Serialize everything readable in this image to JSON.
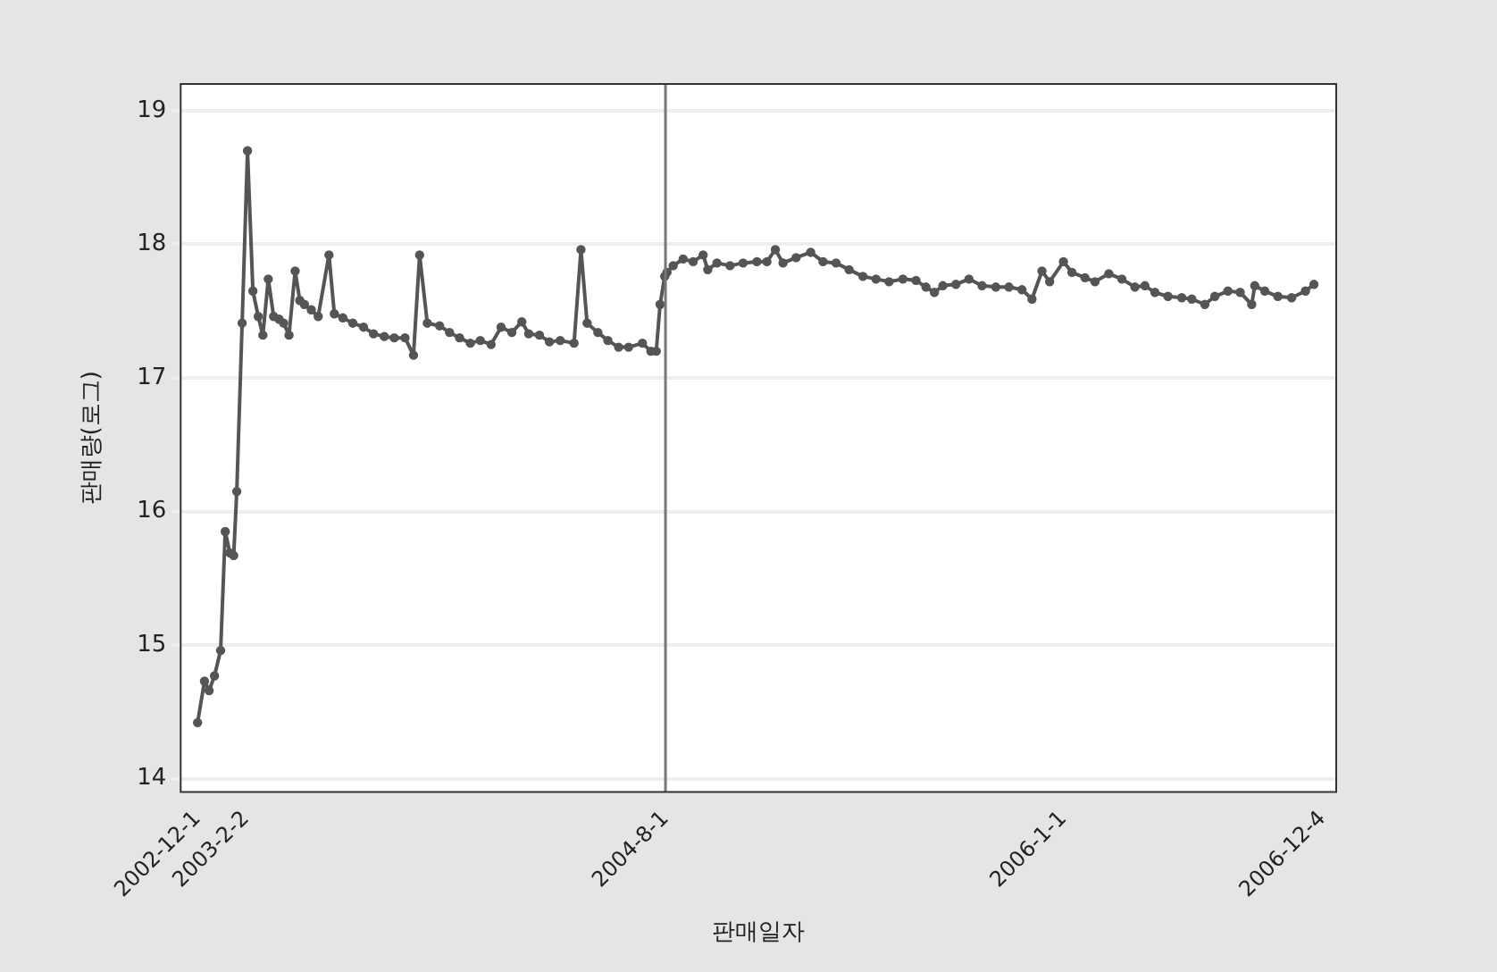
{
  "chart_data": {
    "type": "line",
    "xlabel": "판매일자",
    "ylabel": "판매량(로그)",
    "x": [
      "2002-12-01",
      "2002-12-10",
      "2002-12-16",
      "2002-12-23",
      "2002-12-31",
      "2003-01-06",
      "2003-01-12",
      "2003-01-17",
      "2003-01-21",
      "2003-01-28",
      "2003-02-04",
      "2003-02-11",
      "2003-02-18",
      "2003-02-24",
      "2003-03-03",
      "2003-03-10",
      "2003-03-17",
      "2003-03-23",
      "2003-03-30",
      "2003-04-07",
      "2003-04-13",
      "2003-04-19",
      "2003-04-28",
      "2003-05-07",
      "2003-05-21",
      "2003-05-28",
      "2003-06-08",
      "2003-06-21",
      "2003-07-05",
      "2003-07-18",
      "2003-08-01",
      "2003-08-14",
      "2003-08-28",
      "2003-09-08",
      "2003-09-16",
      "2003-09-26",
      "2003-10-12",
      "2003-10-25",
      "2003-11-07",
      "2003-11-21",
      "2003-12-04",
      "2003-12-18",
      "2003-12-31",
      "2004-01-14",
      "2004-01-27",
      "2004-02-05",
      "2004-02-19",
      "2004-03-03",
      "2004-03-17",
      "2004-04-04",
      "2004-04-13",
      "2004-04-21",
      "2004-05-05",
      "2004-05-18",
      "2004-06-01",
      "2004-06-14",
      "2004-07-02",
      "2004-07-13",
      "2004-07-20",
      "2004-07-25",
      "2004-07-31",
      "2004-08-03",
      "2004-08-11",
      "2004-08-24",
      "2004-09-06",
      "2004-09-19",
      "2004-09-25",
      "2004-10-07",
      "2004-10-24",
      "2004-11-10",
      "2004-11-28",
      "2004-12-11",
      "2004-12-22",
      "2005-01-01",
      "2005-01-18",
      "2005-02-06",
      "2005-02-22",
      "2005-03-11",
      "2005-03-28",
      "2005-04-15",
      "2005-05-02",
      "2005-05-19",
      "2005-06-06",
      "2005-06-23",
      "2005-07-06",
      "2005-07-17",
      "2005-07-28",
      "2005-08-14",
      "2005-08-31",
      "2005-09-17",
      "2005-10-05",
      "2005-10-22",
      "2005-11-08",
      "2005-11-21",
      "2005-12-04",
      "2005-12-14",
      "2006-01-01",
      "2006-01-12",
      "2006-01-29",
      "2006-02-11",
      "2006-03-01",
      "2006-03-18",
      "2006-04-04",
      "2006-04-17",
      "2006-04-30",
      "2006-05-17",
      "2006-06-04",
      "2006-06-17",
      "2006-07-04",
      "2006-07-17",
      "2006-08-03",
      "2006-08-19",
      "2006-09-03",
      "2006-09-07",
      "2006-09-20",
      "2006-10-07",
      "2006-10-25",
      "2006-11-12",
      "2006-11-23"
    ],
    "series": [
      {
        "color": "#555555",
        "values": [
          14.42,
          14.73,
          14.66,
          14.77,
          14.96,
          15.85,
          15.69,
          15.67,
          16.15,
          17.41,
          18.7,
          17.65,
          17.46,
          17.32,
          17.74,
          17.46,
          17.44,
          17.41,
          17.32,
          17.8,
          17.58,
          17.55,
          17.51,
          17.46,
          17.92,
          17.48,
          17.45,
          17.41,
          17.38,
          17.33,
          17.31,
          17.3,
          17.3,
          17.17,
          17.92,
          17.41,
          17.39,
          17.34,
          17.3,
          17.26,
          17.28,
          17.25,
          17.38,
          17.34,
          17.42,
          17.33,
          17.32,
          17.27,
          17.28,
          17.26,
          17.96,
          17.41,
          17.34,
          17.28,
          17.23,
          17.23,
          17.26,
          17.2,
          17.2,
          17.55,
          17.76,
          17.79,
          17.84,
          17.89,
          17.87,
          17.92,
          17.81,
          17.86,
          17.84,
          17.86,
          17.87,
          17.87,
          17.96,
          17.86,
          17.9,
          17.94,
          17.87,
          17.86,
          17.81,
          17.76,
          17.74,
          17.72,
          17.74,
          17.73,
          17.68,
          17.64,
          17.69,
          17.7,
          17.74,
          17.69,
          17.68,
          17.68,
          17.66,
          17.59,
          17.8,
          17.72,
          17.87,
          17.79,
          17.75,
          17.72,
          17.78,
          17.74,
          17.68,
          17.69,
          17.64,
          17.61,
          17.6,
          17.59,
          17.55,
          17.61,
          17.65,
          17.64,
          17.55,
          17.69,
          17.65,
          17.61,
          17.6,
          17.65,
          17.7
        ]
      }
    ],
    "xlim": [
      "2002-11-09",
      "2006-12-22"
    ],
    "xticks": [
      {
        "value": "2002-12-01",
        "label": "2002-12-1"
      },
      {
        "value": "2003-02-02",
        "label": "2003-2-2"
      },
      {
        "value": "2004-08-01",
        "label": "2004-8-1"
      },
      {
        "value": "2006-01-01",
        "label": "2006-1-1"
      },
      {
        "value": "2006-12-04",
        "label": "2006-12-4"
      }
    ],
    "ylim": [
      13.9,
      19.2
    ],
    "yticks": [
      14,
      15,
      16,
      17,
      18,
      19
    ],
    "grid": "y",
    "marker": "circle",
    "line_style": "solid",
    "legend": false,
    "ref_lines": [
      {
        "axis": "x",
        "value": "2004-08-01",
        "color": "#777777"
      }
    ]
  }
}
